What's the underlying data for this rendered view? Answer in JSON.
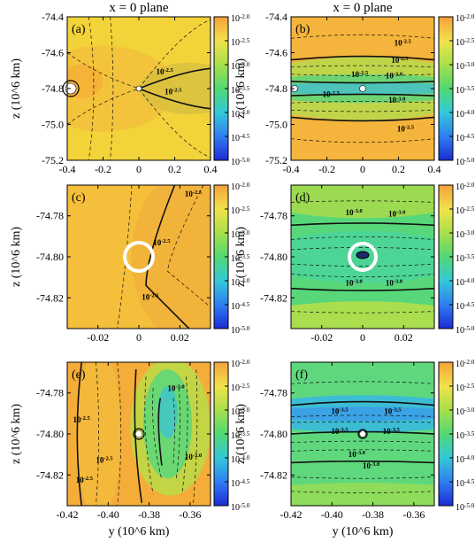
{
  "figure": {
    "column_titles": [
      "x = 0 plane",
      "x = 0 plane"
    ],
    "colorbar_tick_labels": [
      "10^-2.0",
      "10^-2.5",
      "10^-3.0",
      "10^-3.5",
      "10^-4.0",
      "10^-4.5",
      "10^-5.0"
    ],
    "y_axis_label": "z (10^6 km)",
    "x_axis_label": "y (10^6 km)",
    "colorscale": {
      "type": "log",
      "range_log10": [
        -5.0,
        -2.0
      ],
      "stops": [
        "#1c2bd6",
        "#2f7ef0",
        "#33c8d8",
        "#52d873",
        "#a6e04a",
        "#f2e24a",
        "#f5a13a"
      ]
    }
  },
  "chart_data": [
    {
      "type": "heatmap",
      "panel": "(a)",
      "title": "x = 0 plane",
      "xlim": [
        -0.4,
        0.4
      ],
      "ylim": [
        -75.2,
        -74.4
      ],
      "xticks": [
        "-0.4",
        "-0.2",
        "0",
        "0.2",
        "0.4"
      ],
      "yticks": [
        "-74.4",
        "-74.6",
        "-74.8",
        "-75.0",
        "-75.2"
      ],
      "contour_labels": [
        "10^-2.5",
        "10^-2.5"
      ],
      "markers": [
        {
          "y": -0.38,
          "z": -74.8
        },
        {
          "y": 0.0,
          "z": -74.8
        }
      ]
    },
    {
      "type": "heatmap",
      "panel": "(b)",
      "title": "x = 0 plane",
      "xlim": [
        -0.4,
        0.4
      ],
      "ylim": [
        -75.2,
        -74.4
      ],
      "xticks": [
        "-0.4",
        "-0.2",
        "0",
        "0.2",
        "0.4"
      ],
      "yticks": [
        "-74.4",
        "-74.6",
        "-74.8",
        "-75.0",
        "-75.2"
      ],
      "contour_labels": [
        "10^-2.5",
        "10^-2.5",
        "10^-3.0",
        "10^-3.0",
        "10^-2.5",
        "10^-2.5",
        "10^-2.5"
      ],
      "markers": [
        {
          "y": -0.38,
          "z": -74.8
        },
        {
          "y": 0.0,
          "z": -74.8
        }
      ]
    },
    {
      "type": "heatmap",
      "panel": "(c)",
      "xlim": [
        -0.035,
        0.035
      ],
      "ylim": [
        -74.835,
        -74.765
      ],
      "xticks": [
        "-0.02",
        "0",
        "0.02"
      ],
      "yticks": [
        "-74.78",
        "-74.80",
        "-74.82"
      ],
      "contour_labels": [
        "10^-2.5",
        "10^-2.5",
        "10^-2.5"
      ],
      "markers": [
        {
          "y": 0.0,
          "z": -74.8
        }
      ]
    },
    {
      "type": "heatmap",
      "panel": "(d)",
      "xlim": [
        -0.035,
        0.035
      ],
      "ylim": [
        -74.835,
        -74.765
      ],
      "xticks": [
        "-0.02",
        "0",
        "0.02"
      ],
      "yticks": [
        "-74.78",
        "-74.80",
        "-74.82"
      ],
      "contour_labels": [
        "10^-3.0",
        "10^-3.0",
        "10^-3.0",
        "10^-3.0"
      ],
      "markers": [
        {
          "y": 0.0,
          "z": -74.8
        }
      ]
    },
    {
      "type": "heatmap",
      "panel": "(e)",
      "xlim": [
        -0.42,
        -0.35
      ],
      "ylim": [
        -74.835,
        -74.765
      ],
      "xticks": [
        "-0.42",
        "-0.40",
        "-0.38",
        "-0.36"
      ],
      "yticks": [
        "-74.78",
        "-74.80",
        "-74.82"
      ],
      "contour_labels": [
        "10^-2.5",
        "10^-2.5",
        "10^-2.5",
        "10^-3.0",
        "10^-3.0"
      ],
      "markers": [
        {
          "y": -0.385,
          "z": -74.8
        }
      ]
    },
    {
      "type": "heatmap",
      "panel": "(f)",
      "xlim": [
        -0.42,
        -0.35
      ],
      "ylim": [
        -74.835,
        -74.765
      ],
      "xticks": [
        "-0.42",
        "-0.40",
        "-0.38",
        "-0.36"
      ],
      "yticks": [
        "-74.78",
        "-74.80",
        "-74.82"
      ],
      "contour_labels": [
        "10^-3.5",
        "10^-3.5",
        "10^-3.5",
        "10^-3.5",
        "10^-3.0",
        "10^-3.0"
      ],
      "markers": [
        {
          "y": -0.385,
          "z": -74.8
        }
      ]
    }
  ]
}
